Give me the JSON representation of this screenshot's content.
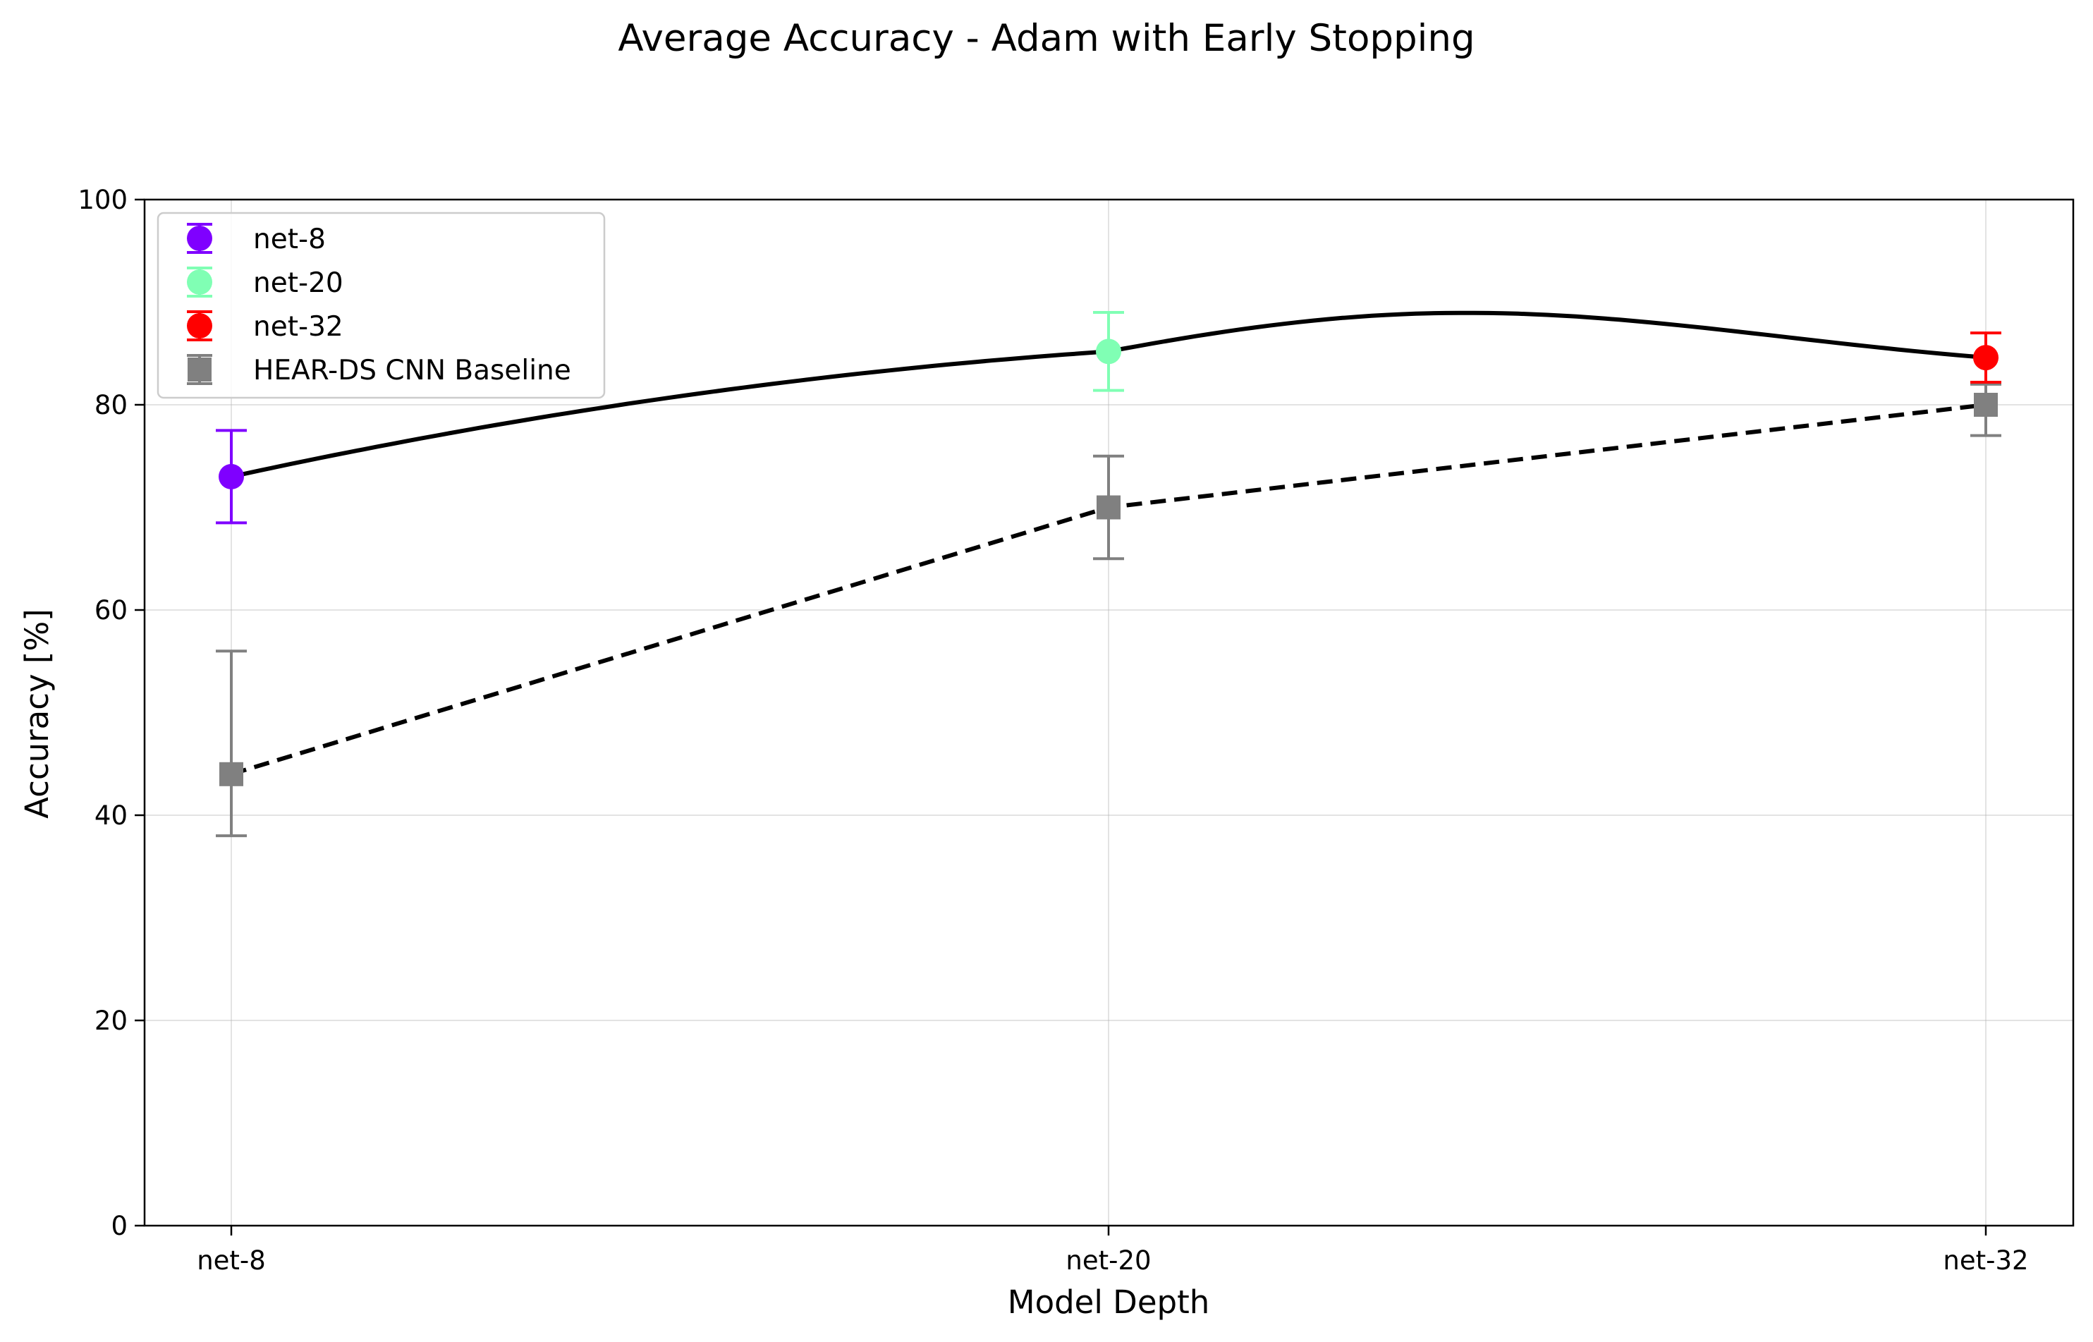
{
  "chart_data": {
    "type": "line",
    "title": "Average Accuracy - Adam with Early Stopping",
    "xlabel": "Model Depth",
    "ylabel": "Accuracy [%]",
    "categories": [
      "net-8",
      "net-20",
      "net-32"
    ],
    "ylim": [
      0,
      100
    ],
    "yticks": [
      0,
      20,
      40,
      60,
      80,
      100
    ],
    "grid": true,
    "legend_position": "upper-left",
    "points": [
      {
        "name": "net-8",
        "x": "net-8",
        "y": 73.0,
        "err_low": 68.5,
        "err_high": 77.5,
        "color": "#7f00ff",
        "marker": "circle"
      },
      {
        "name": "net-20",
        "x": "net-20",
        "y": 85.2,
        "err_low": 81.4,
        "err_high": 89.0,
        "color": "#80ffb4",
        "marker": "circle"
      },
      {
        "name": "net-32",
        "x": "net-32",
        "y": 84.6,
        "err_low": 82.2,
        "err_high": 87.0,
        "color": "#ff0000",
        "marker": "circle"
      }
    ],
    "baseline": {
      "name": "HEAR-DS CNN Baseline",
      "color": "#808080",
      "marker": "square",
      "values": [
        44.0,
        70.0,
        80.0
      ],
      "err_low": [
        38.0,
        65.0,
        77.0
      ],
      "err_high": [
        56.0,
        75.0,
        82.0
      ],
      "line_style": "dashed"
    },
    "fit_curve": {
      "style": "solid",
      "color": "#000000"
    }
  }
}
